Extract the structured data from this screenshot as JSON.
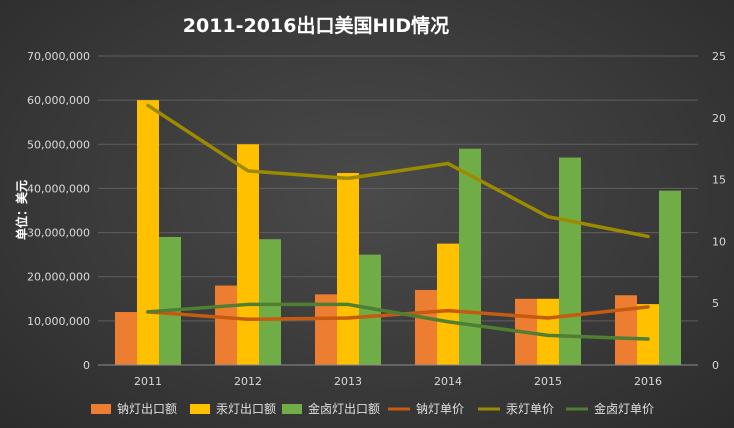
{
  "chart_data": {
    "type": "bar",
    "title": "2011-2016出口美国HID情况",
    "categories": [
      "2011",
      "2012",
      "2013",
      "2014",
      "2015",
      "2016"
    ],
    "ylabel": "单位：美元",
    "ylim": [
      0,
      70000000
    ],
    "y_ticks": [
      "0",
      "10,000,000",
      "20,000,000",
      "30,000,000",
      "40,000,000",
      "50,000,000",
      "60,000,000",
      "70,000,000"
    ],
    "y2lim": [
      0,
      25
    ],
    "y2_ticks": [
      "0",
      "5",
      "10",
      "15",
      "20",
      "25"
    ],
    "bar_series": [
      {
        "name": "钠灯出口额",
        "color": "#ed7d31",
        "values": [
          12000000,
          18000000,
          16000000,
          17000000,
          15000000,
          15800000
        ]
      },
      {
        "name": "汞灯出口额",
        "color": "#ffc000",
        "values": [
          60000000,
          50000000,
          43500000,
          27500000,
          15000000,
          13800000
        ]
      },
      {
        "name": "金卤灯出口额",
        "color": "#70ad47",
        "values": [
          29000000,
          28500000,
          25000000,
          49000000,
          47000000,
          39500000
        ]
      }
    ],
    "line_series": [
      {
        "name": "钠灯单价",
        "color": "#c55a11",
        "axis": "right",
        "values": [
          4.3,
          3.7,
          3.8,
          4.4,
          3.8,
          4.7
        ]
      },
      {
        "name": "汞灯单价",
        "color": "#9c8a00",
        "axis": "right",
        "values": [
          21.0,
          15.7,
          15.1,
          16.3,
          12.0,
          10.4
        ]
      },
      {
        "name": "金卤灯单价",
        "color": "#507e32",
        "axis": "right",
        "values": [
          4.3,
          4.9,
          4.9,
          3.5,
          2.4,
          2.1
        ]
      }
    ],
    "legend": {
      "position": "bottom"
    },
    "grid": true
  }
}
